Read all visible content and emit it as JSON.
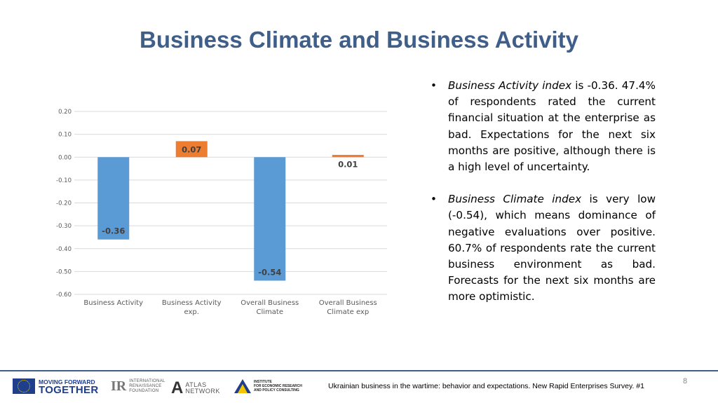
{
  "slide": {
    "title": "Business Climate and Business Activity",
    "page_number": "8",
    "footer_text": "Ukrainian business in the wartime: behavior and expectations. New Rapid Enterprises Survey. #1"
  },
  "bullets": [
    {
      "term": "Business Activity index",
      "text": " is -0.36. 47.4% of respondents rated the current financial situation at the enterprise as bad. Expectations for the next six months are positive, although there is a high level of uncertainty."
    },
    {
      "term": "Business Climate index",
      "text": " is very low (-0.54), which means dominance of negative evaluations over positive. 60.7% of respondents rate the current business environment as bad. Forecasts for the next six months are more optimistic."
    }
  ],
  "logos": {
    "moving_forward": [
      "MOVING FORWARD",
      "TOGETHER"
    ],
    "irf": [
      "INTERNATIONAL",
      "RENAISSANCE",
      "FOUNDATION"
    ],
    "atlas": [
      "ATLAS",
      "NETWORK"
    ],
    "ier": [
      "INSTITUTE",
      "FOR ECONOMIC RESEARCH",
      "AND POLICY CONSULTING"
    ]
  },
  "chart_data": {
    "type": "bar",
    "categories": [
      "Business Activity",
      "Business Activity exp.",
      "Overall Business Climate",
      "Overall Business Climate exp"
    ],
    "category_lines": [
      [
        "Business Activity"
      ],
      [
        "Business Activity",
        "exp."
      ],
      [
        "Overall Business",
        "Climate"
      ],
      [
        "Overall Business",
        "Climate exp"
      ]
    ],
    "values": [
      -0.36,
      0.07,
      -0.54,
      0.01
    ],
    "data_labels": [
      "-0.36",
      "0.07",
      "-0.54",
      "0.01"
    ],
    "bar_colors": [
      "#5b9bd5",
      "#ed7d31",
      "#5b9bd5",
      "#ed7d31"
    ],
    "ylim": [
      -0.6,
      0.2
    ],
    "yticks": [
      0.2,
      0.1,
      0.0,
      -0.1,
      -0.2,
      -0.3,
      -0.4,
      -0.5,
      -0.6
    ],
    "ytick_labels": [
      "0.20",
      "0.10",
      "0.00",
      "-0.10",
      "-0.20",
      "-0.30",
      "-0.40",
      "-0.50",
      "-0.60"
    ],
    "grid": true,
    "legend": "none",
    "title": "",
    "xlabel": "",
    "ylabel": ""
  }
}
